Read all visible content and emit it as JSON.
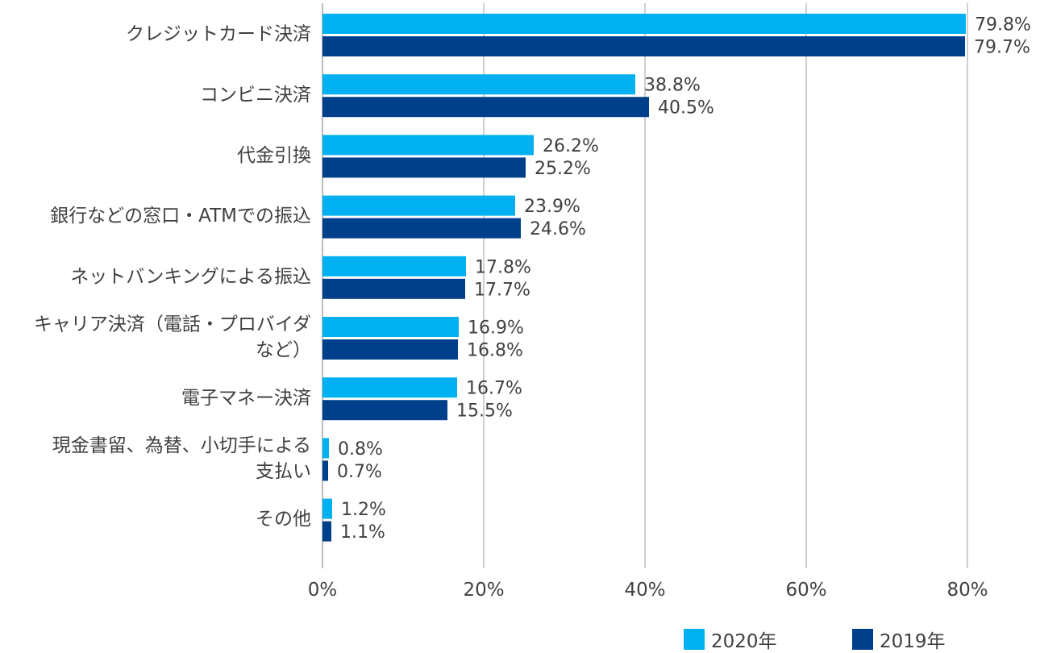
{
  "chart_data": {
    "type": "bar",
    "orientation": "horizontal",
    "categories": [
      [
        "クレジットカード決済"
      ],
      [
        "コンビニ決済"
      ],
      [
        "代金引換"
      ],
      [
        "銀行などの窓口・ATMでの振込"
      ],
      [
        "ネットバンキングによる振込"
      ],
      [
        "キャリア決済（電話・プロバイダ",
        "など）"
      ],
      [
        "電子マネー決済"
      ],
      [
        "現金書留、為替、小切手による",
        "支払い"
      ],
      [
        "その他"
      ]
    ],
    "series": [
      {
        "name": "2020年",
        "color": "#00B0F0",
        "values": [
          79.8,
          38.8,
          26.2,
          23.9,
          17.8,
          16.9,
          16.7,
          0.8,
          1.2
        ],
        "labels": [
          "79.8%",
          "38.8%",
          "26.2%",
          "23.9%",
          "17.8%",
          "16.9%",
          "16.7%",
          "0.8%",
          "1.2%"
        ]
      },
      {
        "name": "2019年",
        "color": "#003F8A",
        "values": [
          79.7,
          40.5,
          25.2,
          24.6,
          17.7,
          16.8,
          15.5,
          0.7,
          1.1
        ],
        "labels": [
          "79.7%",
          "40.5%",
          "25.2%",
          "24.6%",
          "17.7%",
          "16.8%",
          "15.5%",
          "0.7%",
          "1.1%"
        ]
      }
    ],
    "xlim": [
      0,
      80
    ],
    "xticks": [
      0,
      20,
      40,
      60,
      80
    ],
    "xtick_labels": [
      "0%",
      "20%",
      "40%",
      "60%",
      "80%"
    ],
    "grid": true,
    "grid_color": "#BFBFBF",
    "legend_position": "bottom-right"
  }
}
